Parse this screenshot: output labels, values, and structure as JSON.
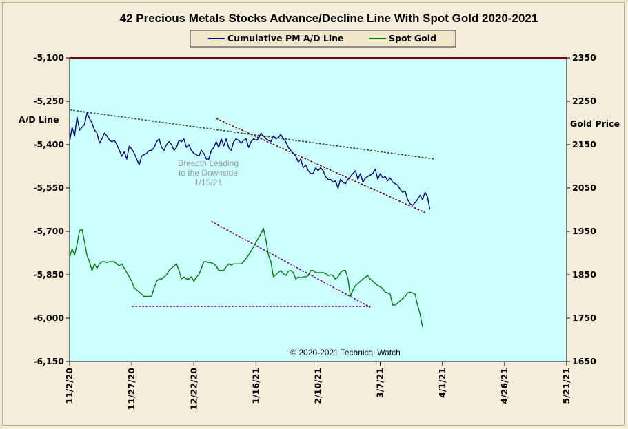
{
  "chart_data": {
    "type": "line",
    "title": "42 Precious Metals Stocks Advance/Decline Line With Spot Gold 2020-2021",
    "y_left_label": "A/D Line",
    "y_right_label": "Gold Price",
    "y_left_range": [
      -6150,
      -5100
    ],
    "y_left_ticks": [
      "-5,100",
      "-5,250",
      "-5,400",
      "-5,550",
      "-5,700",
      "-5,850",
      "-6,000",
      "-6,150"
    ],
    "y_right_range": [
      1650,
      2350
    ],
    "y_right_ticks": [
      "2350",
      "2250",
      "2150",
      "2050",
      "1950",
      "1850",
      "1750",
      "1650"
    ],
    "x_tick_labels": [
      "11/2/20",
      "11/27/20",
      "12/22/20",
      "1/16/21",
      "2/10/21",
      "3/7/21",
      "4/1/21",
      "4/26/21",
      "5/21/21"
    ],
    "x_domain_days": [
      0,
      200
    ],
    "legend": [
      {
        "name": "Cumulative PM A/D Line",
        "color": "#000080"
      },
      {
        "name": "Spot Gold",
        "color": "#008000"
      }
    ],
    "legend_position": "top-center",
    "grid": false,
    "plot_background": "#ccffff",
    "annotation": "Breadth Leading\nto the Downside\n1/15/21",
    "copyright": "© 2020-2021  Technical Watch",
    "series": [
      {
        "name": "Cumulative PM A/D Line",
        "axis": "left",
        "color": "#000080",
        "points": [
          [
            0,
            -5390
          ],
          [
            1,
            -5340
          ],
          [
            2,
            -5370
          ],
          [
            3,
            -5305
          ],
          [
            4,
            -5350
          ],
          [
            5,
            -5340
          ],
          [
            6,
            -5330
          ],
          [
            7,
            -5290
          ],
          [
            8,
            -5310
          ],
          [
            9,
            -5325
          ],
          [
            10,
            -5350
          ],
          [
            11,
            -5360
          ],
          [
            12,
            -5395
          ],
          [
            13,
            -5380
          ],
          [
            14,
            -5360
          ],
          [
            15,
            -5370
          ],
          [
            16,
            -5385
          ],
          [
            17,
            -5390
          ],
          [
            18,
            -5385
          ],
          [
            19,
            -5400
          ],
          [
            20,
            -5420
          ],
          [
            21,
            -5440
          ],
          [
            22,
            -5425
          ],
          [
            23,
            -5450
          ],
          [
            24,
            -5405
          ],
          [
            25,
            -5415
          ],
          [
            26,
            -5430
          ],
          [
            27,
            -5450
          ],
          [
            28,
            -5470
          ],
          [
            29,
            -5440
          ],
          [
            30,
            -5435
          ],
          [
            31,
            -5430
          ],
          [
            32,
            -5420
          ],
          [
            33,
            -5420
          ],
          [
            34,
            -5410
          ],
          [
            35,
            -5390
          ],
          [
            36,
            -5380
          ],
          [
            37,
            -5410
          ],
          [
            38,
            -5420
          ],
          [
            39,
            -5400
          ],
          [
            40,
            -5390
          ],
          [
            41,
            -5400
          ],
          [
            42,
            -5420
          ],
          [
            43,
            -5410
          ],
          [
            44,
            -5385
          ],
          [
            45,
            -5390
          ],
          [
            46,
            -5380
          ],
          [
            47,
            -5410
          ],
          [
            48,
            -5400
          ],
          [
            49,
            -5420
          ],
          [
            50,
            -5430
          ],
          [
            51,
            -5435
          ],
          [
            52,
            -5440
          ],
          [
            53,
            -5420
          ],
          [
            54,
            -5430
          ],
          [
            55,
            -5450
          ],
          [
            56,
            -5450
          ],
          [
            57,
            -5420
          ],
          [
            58,
            -5410
          ],
          [
            59,
            -5390
          ],
          [
            60,
            -5410
          ],
          [
            61,
            -5380
          ],
          [
            62,
            -5405
          ],
          [
            63,
            -5380
          ],
          [
            64,
            -5410
          ],
          [
            65,
            -5420
          ],
          [
            66,
            -5390
          ],
          [
            67,
            -5380
          ],
          [
            68,
            -5385
          ],
          [
            69,
            -5395
          ],
          [
            70,
            -5385
          ],
          [
            71,
            -5380
          ],
          [
            72,
            -5410
          ],
          [
            73,
            -5390
          ],
          [
            74,
            -5380
          ],
          [
            75,
            -5385
          ],
          [
            76,
            -5380
          ],
          [
            77,
            -5360
          ],
          [
            78,
            -5370
          ],
          [
            79,
            -5380
          ],
          [
            80,
            -5385
          ],
          [
            81,
            -5390
          ],
          [
            82,
            -5370
          ],
          [
            83,
            -5380
          ],
          [
            84,
            -5375
          ],
          [
            85,
            -5365
          ],
          [
            86,
            -5380
          ],
          [
            87,
            -5390
          ],
          [
            88,
            -5410
          ],
          [
            89,
            -5420
          ],
          [
            90,
            -5430
          ],
          [
            91,
            -5440
          ],
          [
            92,
            -5460
          ],
          [
            93,
            -5450
          ],
          [
            94,
            -5480
          ],
          [
            95,
            -5470
          ],
          [
            96,
            -5490
          ],
          [
            97,
            -5500
          ],
          [
            98,
            -5500
          ],
          [
            99,
            -5480
          ],
          [
            100,
            -5490
          ],
          [
            101,
            -5480
          ],
          [
            102,
            -5490
          ],
          [
            103,
            -5510
          ],
          [
            104,
            -5520
          ],
          [
            105,
            -5520
          ],
          [
            106,
            -5530
          ],
          [
            107,
            -5525
          ],
          [
            108,
            -5550
          ],
          [
            109,
            -5520
          ],
          [
            110,
            -5530
          ],
          [
            111,
            -5535
          ],
          [
            112,
            -5520
          ],
          [
            113,
            -5510
          ],
          [
            114,
            -5500
          ],
          [
            115,
            -5490
          ],
          [
            116,
            -5520
          ],
          [
            117,
            -5500
          ],
          [
            118,
            -5530
          ],
          [
            119,
            -5515
          ],
          [
            120,
            -5510
          ],
          [
            121,
            -5505
          ],
          [
            122,
            -5500
          ],
          [
            123,
            -5485
          ],
          [
            124,
            -5520
          ],
          [
            125,
            -5500
          ],
          [
            126,
            -5515
          ],
          [
            127,
            -5510
          ],
          [
            128,
            -5525
          ],
          [
            129,
            -5515
          ],
          [
            130,
            -5530
          ],
          [
            131,
            -5535
          ],
          [
            132,
            -5540
          ],
          [
            133,
            -5555
          ],
          [
            134,
            -5565
          ],
          [
            135,
            -5560
          ],
          [
            136,
            -5590
          ],
          [
            137,
            -5605
          ],
          [
            138,
            -5610
          ],
          [
            139,
            -5600
          ],
          [
            140,
            -5590
          ],
          [
            141,
            -5575
          ],
          [
            142,
            -5590
          ],
          [
            143,
            -5565
          ],
          [
            144,
            -5580
          ],
          [
            145,
            -5625
          ]
        ]
      },
      {
        "name": "Spot Gold",
        "axis": "right",
        "color": "#008000",
        "points": [
          [
            0,
            1890
          ],
          [
            1,
            1910
          ],
          [
            2,
            1895
          ],
          [
            3,
            1920
          ],
          [
            4,
            1952
          ],
          [
            5,
            1955
          ],
          [
            6,
            1925
          ],
          [
            7,
            1895
          ],
          [
            8,
            1880
          ],
          [
            9,
            1860
          ],
          [
            10,
            1875
          ],
          [
            11,
            1865
          ],
          [
            12,
            1875
          ],
          [
            13,
            1880
          ],
          [
            14,
            1880
          ],
          [
            15,
            1878
          ],
          [
            16,
            1880
          ],
          [
            17,
            1880
          ],
          [
            18,
            1880
          ],
          [
            19,
            1875
          ],
          [
            20,
            1870
          ],
          [
            21,
            1875
          ],
          [
            22,
            1865
          ],
          [
            23,
            1855
          ],
          [
            24,
            1845
          ],
          [
            25,
            1835
          ],
          [
            26,
            1820
          ],
          [
            27,
            1815
          ],
          [
            28,
            1810
          ],
          [
            29,
            1805
          ],
          [
            30,
            1800
          ],
          [
            31,
            1800
          ],
          [
            32,
            1800
          ],
          [
            33,
            1800
          ],
          [
            34,
            1820
          ],
          [
            35,
            1835
          ],
          [
            36,
            1840
          ],
          [
            37,
            1840
          ],
          [
            38,
            1845
          ],
          [
            39,
            1850
          ],
          [
            40,
            1860
          ],
          [
            41,
            1865
          ],
          [
            42,
            1870
          ],
          [
            43,
            1875
          ],
          [
            44,
            1860
          ],
          [
            45,
            1840
          ],
          [
            46,
            1845
          ],
          [
            47,
            1840
          ],
          [
            48,
            1840
          ],
          [
            49,
            1845
          ],
          [
            50,
            1835
          ],
          [
            51,
            1845
          ],
          [
            52,
            1850
          ],
          [
            53,
            1865
          ],
          [
            54,
            1880
          ],
          [
            55,
            1880
          ],
          [
            56,
            1878
          ],
          [
            57,
            1878
          ],
          [
            58,
            1875
          ],
          [
            59,
            1870
          ],
          [
            60,
            1860
          ],
          [
            61,
            1860
          ],
          [
            62,
            1860
          ],
          [
            63,
            1868
          ],
          [
            64,
            1875
          ],
          [
            65,
            1872
          ],
          [
            66,
            1875
          ],
          [
            67,
            1875
          ],
          [
            68,
            1875
          ],
          [
            69,
            1875
          ],
          [
            70,
            1880
          ],
          [
            71,
            1888
          ],
          [
            72,
            1895
          ],
          [
            73,
            1905
          ],
          [
            74,
            1915
          ],
          [
            75,
            1925
          ],
          [
            76,
            1935
          ],
          [
            77,
            1945
          ],
          [
            78,
            1957
          ],
          [
            79,
            1930
          ],
          [
            80,
            1895
          ],
          [
            81,
            1880
          ],
          [
            82,
            1845
          ],
          [
            83,
            1850
          ],
          [
            84,
            1855
          ],
          [
            85,
            1860
          ],
          [
            86,
            1852
          ],
          [
            87,
            1848
          ],
          [
            88,
            1858
          ],
          [
            89,
            1860
          ],
          [
            90,
            1855
          ],
          [
            91,
            1840
          ],
          [
            92,
            1845
          ],
          [
            93,
            1843
          ],
          [
            94,
            1845
          ],
          [
            95,
            1845
          ],
          [
            96,
            1848
          ],
          [
            97,
            1860
          ],
          [
            98,
            1860
          ],
          [
            99,
            1855
          ],
          [
            100,
            1855
          ],
          [
            101,
            1855
          ],
          [
            102,
            1855
          ],
          [
            103,
            1853
          ],
          [
            104,
            1848
          ],
          [
            105,
            1850
          ],
          [
            106,
            1848
          ],
          [
            107,
            1840
          ],
          [
            108,
            1845
          ],
          [
            109,
            1855
          ],
          [
            110,
            1860
          ],
          [
            111,
            1860
          ],
          [
            112,
            1840
          ],
          [
            113,
            1800
          ],
          [
            114,
            1815
          ],
          [
            115,
            1825
          ],
          [
            116,
            1830
          ],
          [
            117,
            1835
          ],
          [
            118,
            1840
          ],
          [
            119,
            1845
          ],
          [
            120,
            1848
          ],
          [
            121,
            1840
          ],
          [
            122,
            1835
          ],
          [
            123,
            1830
          ],
          [
            124,
            1825
          ],
          [
            125,
            1822
          ],
          [
            126,
            1818
          ],
          [
            127,
            1810
          ],
          [
            128,
            1808
          ],
          [
            129,
            1805
          ],
          [
            130,
            1780
          ],
          [
            131,
            1780
          ],
          [
            132,
            1785
          ],
          [
            133,
            1790
          ],
          [
            134,
            1795
          ],
          [
            135,
            1800
          ],
          [
            136,
            1808
          ],
          [
            137,
            1810
          ],
          [
            138,
            1808
          ],
          [
            139,
            1805
          ],
          [
            140,
            1780
          ],
          [
            141,
            1760
          ],
          [
            142,
            1730
          ]
        ]
      }
    ],
    "trendlines": [
      {
        "axis": "left",
        "points": [
          [
            0,
            -5280
          ],
          [
            147,
            -5450
          ]
        ],
        "color": "#2f4f2f"
      },
      {
        "axis": "left",
        "points": [
          [
            59,
            -5310
          ],
          [
            143,
            -5635
          ]
        ],
        "color": "#800000"
      },
      {
        "axis": "right",
        "points": [
          [
            57,
            1973
          ],
          [
            121,
            1775
          ]
        ],
        "color": "#800080"
      },
      {
        "axis": "right",
        "points": [
          [
            25,
            1777
          ],
          [
            121,
            1777
          ]
        ],
        "color": "#800080"
      }
    ]
  }
}
